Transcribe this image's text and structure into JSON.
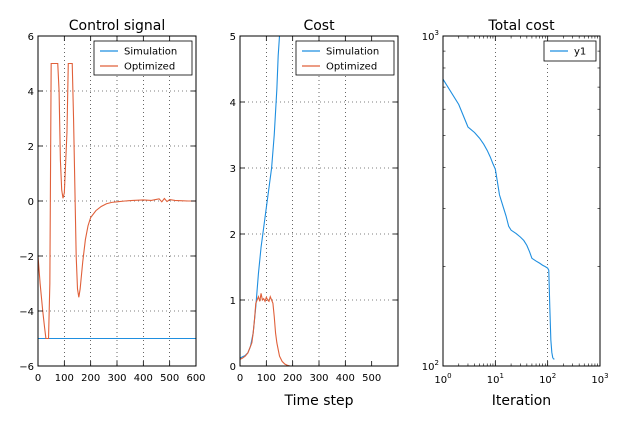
{
  "colors": {
    "simulation": "#1f8fe0",
    "optimized": "#e0603a"
  },
  "chart_data": [
    {
      "type": "line",
      "title": "Control signal",
      "xlabel": "",
      "xlim": [
        0,
        600
      ],
      "ylim": [
        -6,
        6
      ],
      "xticks": [
        0,
        100,
        200,
        300,
        400,
        500,
        600
      ],
      "xtick_labels": [
        "0",
        "100",
        "200",
        "300",
        "400",
        "500",
        "600"
      ],
      "yticks": [
        -6,
        -4,
        -2,
        0,
        2,
        4,
        6
      ],
      "ytick_labels": [
        "−6",
        "−4",
        "−2",
        "0",
        "2",
        "4",
        "6"
      ],
      "grid": true,
      "legend": "top-right",
      "series": [
        {
          "name": "Simulation",
          "color": "#1f8fe0",
          "x": [
            0,
            600
          ],
          "y": [
            -5,
            -5
          ]
        },
        {
          "name": "Optimized",
          "color": "#e0603a",
          "x": [
            0,
            8,
            18,
            25,
            30,
            40,
            45,
            50,
            58,
            65,
            75,
            80,
            85,
            90,
            95,
            100,
            110,
            115,
            120,
            125,
            130,
            135,
            140,
            145,
            150,
            155,
            160,
            170,
            180,
            190,
            200,
            220,
            240,
            260,
            280,
            300,
            330,
            360,
            400,
            430,
            460,
            470,
            480,
            490,
            500,
            520,
            540,
            570,
            600
          ],
          "y": [
            -2.0,
            -3.0,
            -4.0,
            -4.6,
            -5.0,
            -5.0,
            -3.0,
            5.0,
            5.0,
            5.0,
            5.0,
            4.0,
            1.5,
            0.4,
            0.1,
            0.3,
            2.5,
            5.0,
            5.0,
            5.0,
            5.0,
            3.0,
            0.5,
            -2.0,
            -3.2,
            -3.5,
            -3.2,
            -2.2,
            -1.4,
            -0.9,
            -0.6,
            -0.35,
            -0.2,
            -0.1,
            -0.05,
            -0.03,
            0.0,
            0.02,
            0.04,
            0.02,
            0.08,
            -0.03,
            0.09,
            -0.02,
            0.05,
            0.02,
            0.01,
            0.0,
            0.0
          ]
        }
      ]
    },
    {
      "type": "line",
      "title": "Cost",
      "xlabel": "Time step",
      "xlim": [
        0,
        600
      ],
      "ylim": [
        0,
        5
      ],
      "xticks": [
        0,
        100,
        200,
        300,
        400,
        500
      ],
      "xtick_labels": [
        "0",
        "100",
        "200",
        "300",
        "400",
        "500"
      ],
      "yticks": [
        0,
        1,
        2,
        3,
        4,
        5
      ],
      "ytick_labels": [
        "0",
        "1",
        "2",
        "3",
        "4",
        "5"
      ],
      "grid": true,
      "legend": "top-right",
      "series": [
        {
          "name": "Simulation",
          "color": "#1f8fe0",
          "x": [
            0,
            10,
            20,
            30,
            40,
            50,
            60,
            70,
            80,
            90,
            100,
            110,
            120,
            130,
            140,
            145,
            150,
            155
          ],
          "y": [
            0.12,
            0.14,
            0.16,
            0.2,
            0.3,
            0.5,
            0.9,
            1.4,
            1.8,
            2.1,
            2.4,
            2.7,
            3.0,
            3.5,
            4.2,
            4.7,
            5.0,
            5.2
          ]
        },
        {
          "name": "Optimized",
          "color": "#e0603a",
          "x": [
            0,
            10,
            20,
            30,
            40,
            45,
            50,
            55,
            60,
            65,
            70,
            75,
            80,
            85,
            90,
            95,
            100,
            105,
            110,
            115,
            120,
            125,
            130,
            135,
            140,
            145,
            150,
            160,
            170,
            180,
            190,
            200,
            300,
            400,
            500,
            600
          ],
          "y": [
            0.1,
            0.12,
            0.15,
            0.2,
            0.3,
            0.35,
            0.5,
            0.7,
            0.95,
            1.0,
            1.05,
            0.98,
            1.1,
            1.0,
            1.02,
            0.98,
            1.04,
            1.0,
            0.98,
            1.05,
            1.0,
            0.95,
            0.75,
            0.5,
            0.35,
            0.25,
            0.15,
            0.07,
            0.03,
            0.01,
            0.0,
            0.0,
            0.0,
            0.0,
            0.0,
            0.0
          ]
        }
      ]
    },
    {
      "type": "line",
      "title": "Total cost",
      "xlabel": "Iteration",
      "xscale": "log",
      "yscale": "log",
      "xlim": [
        1,
        1000
      ],
      "ylim": [
        100,
        1000
      ],
      "xticks": [
        1,
        10,
        100,
        1000
      ],
      "xtick_labels": [
        "10^0",
        "10^1",
        "10^2",
        "10^3"
      ],
      "yticks": [
        100,
        1000
      ],
      "ytick_labels": [
        "10^2",
        "10^3"
      ],
      "grid": true,
      "legend": "top-right",
      "series": [
        {
          "name": "y1",
          "color": "#1f8fe0",
          "x": [
            1,
            2,
            3,
            4,
            5,
            6,
            7,
            8,
            9,
            10,
            11,
            12,
            14,
            16,
            18,
            20,
            25,
            30,
            35,
            40,
            45,
            50,
            60,
            70,
            80,
            90,
            100,
            105,
            110,
            115,
            120,
            125,
            130,
            135
          ],
          "y": [
            740,
            620,
            530,
            510,
            490,
            470,
            450,
            430,
            410,
            395,
            360,
            330,
            305,
            285,
            265,
            258,
            252,
            246,
            240,
            232,
            222,
            212,
            208,
            205,
            202,
            200,
            198,
            195,
            150,
            120,
            110,
            106,
            105,
            105
          ]
        }
      ]
    }
  ]
}
